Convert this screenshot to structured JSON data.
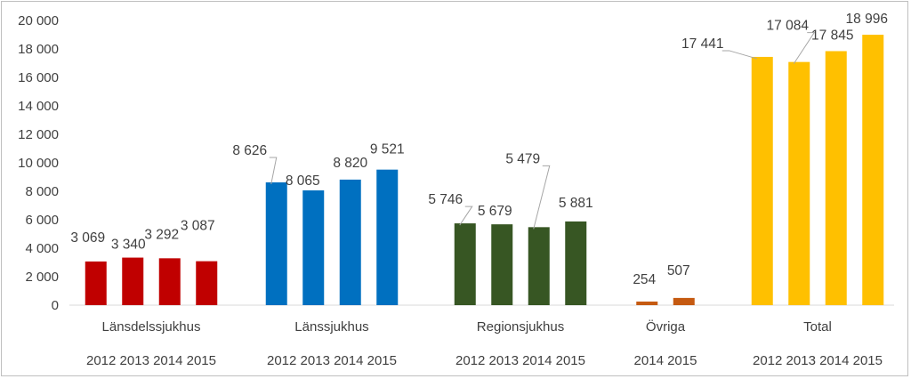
{
  "chart_data": {
    "type": "bar",
    "title": "",
    "xlabel": "",
    "ylabel": "",
    "ylim": [
      0,
      20000
    ],
    "yticks": [
      0,
      2000,
      4000,
      6000,
      8000,
      10000,
      12000,
      14000,
      16000,
      18000,
      20000
    ],
    "ytick_labels": [
      "0",
      "2 000",
      "4 000",
      "6 000",
      "8 000",
      "10 000",
      "12 000",
      "14 000",
      "16 000",
      "18 000",
      "20 000"
    ],
    "grid": false,
    "legend": "none",
    "groups": [
      {
        "name": "Länsdelssjukhus",
        "color": "#c00000",
        "years": [
          "2012",
          "2013",
          "2014",
          "2015"
        ],
        "years_label": "2012 2013 2014 2015",
        "values": [
          3069,
          3340,
          3292,
          3087
        ],
        "labels": [
          "3 069",
          "3 340",
          "3 292",
          "3 087"
        ]
      },
      {
        "name": "Länssjukhus",
        "color": "#0070c0",
        "years": [
          "2012",
          "2013",
          "2014",
          "2015"
        ],
        "years_label": "2012 2013 2014 2015",
        "values": [
          8626,
          8065,
          8820,
          9521
        ],
        "labels": [
          "8 626",
          "8 065",
          "8 820",
          "9 521"
        ]
      },
      {
        "name": "Regionsjukhus",
        "color": "#375623",
        "years": [
          "2012",
          "2013",
          "2014",
          "2015"
        ],
        "years_label": "2012 2013 2014 2015",
        "values": [
          5746,
          5679,
          5479,
          5881
        ],
        "labels": [
          "5 746",
          "5 679",
          "5 479",
          "5 881"
        ]
      },
      {
        "name": "Övriga",
        "color": "#c55a11",
        "years": [
          "2014",
          "2015"
        ],
        "years_label": "2014 2015",
        "values": [
          254,
          507
        ],
        "labels": [
          "254",
          "507"
        ]
      },
      {
        "name": "Total",
        "color": "#ffc000",
        "years": [
          "2012",
          "2013",
          "2014",
          "2015"
        ],
        "years_label": "2012 2013 2014 2015",
        "values": [
          17441,
          17084,
          17845,
          18996
        ],
        "labels": [
          "17 441",
          "17 084",
          "17 845",
          "18 996"
        ]
      }
    ]
  },
  "colors": {
    "axis": "#d9d9d9",
    "text": "#404040",
    "leader": "#a6a6a6"
  }
}
